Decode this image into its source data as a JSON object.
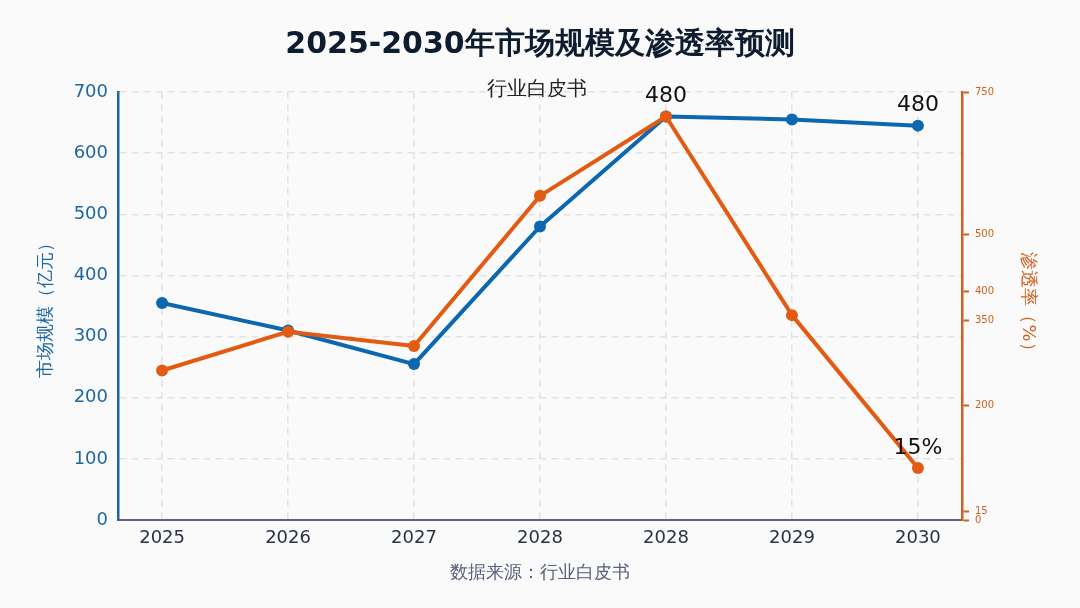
{
  "chart_data": {
    "type": "line",
    "title": "2025-2030年市场规模及渗透率预测",
    "subtitle": "行业白皮书",
    "ylabel": "市场规模（亿元）",
    "y2label": "渗透率（%）",
    "categories": [
      "2025",
      "2026",
      "2027",
      "2028",
      "2028",
      "2029",
      "2030"
    ],
    "series": [
      {
        "color": "#0a67b0",
        "values": [
          355,
          310,
          255,
          480,
          660,
          655,
          645
        ]
      },
      {
        "color": "#e35b12",
        "axis": "y2",
        "values": [
          262,
          330,
          305,
          568,
          707,
          359,
          91
        ]
      }
    ],
    "ylim": [
      0,
      700
    ],
    "yticks": [
      0,
      100,
      200,
      300,
      400,
      500,
      600,
      700
    ],
    "y2lim": [
      0,
      750
    ],
    "y2ticks": [
      0,
      15,
      200,
      350,
      400,
      500,
      750
    ],
    "annotations": [
      {
        "text": "480",
        "x": "2030",
        "y": 645
      },
      {
        "text": "480",
        "y": 660
      },
      {
        "text": "15%",
        "x": "2030",
        "y": 85
      },
      "数据来源：行业白皮书"
    ],
    "grid": true,
    "marker": "circle",
    "line_style": "solid"
  }
}
